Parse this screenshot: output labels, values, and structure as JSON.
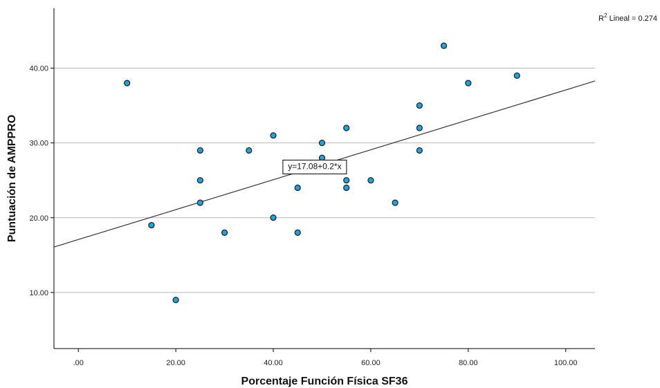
{
  "chart_data": {
    "type": "scatter",
    "title": "",
    "xlabel": "Porcentaje Función Física SF36",
    "ylabel": "Puntuación de AMPPRO",
    "xlim": [
      -5,
      106
    ],
    "ylim": [
      2.5,
      48
    ],
    "x_ticks": [
      0,
      20,
      40,
      60,
      80,
      100
    ],
    "x_tick_labels": [
      ".00",
      "20.00",
      "40.00",
      "60.00",
      "80.00",
      "100.00"
    ],
    "y_ticks": [
      10,
      20,
      30,
      40
    ],
    "y_tick_labels": [
      "10.00",
      "20.00",
      "30.00",
      "40.00"
    ],
    "grid": "horizontal",
    "marker_color": "#1fa3e0",
    "marker_edge_color": "#1a1a1a",
    "points": [
      {
        "x": 10,
        "y": 38
      },
      {
        "x": 15,
        "y": 19
      },
      {
        "x": 20,
        "y": 9
      },
      {
        "x": 25,
        "y": 29
      },
      {
        "x": 25,
        "y": 25
      },
      {
        "x": 25,
        "y": 22
      },
      {
        "x": 30,
        "y": 18
      },
      {
        "x": 35,
        "y": 29
      },
      {
        "x": 40,
        "y": 31
      },
      {
        "x": 40,
        "y": 20
      },
      {
        "x": 45,
        "y": 24
      },
      {
        "x": 45,
        "y": 18
      },
      {
        "x": 50,
        "y": 30
      },
      {
        "x": 50,
        "y": 28
      },
      {
        "x": 55,
        "y": 32
      },
      {
        "x": 55,
        "y": 25
      },
      {
        "x": 55,
        "y": 24
      },
      {
        "x": 60,
        "y": 25
      },
      {
        "x": 65,
        "y": 22
      },
      {
        "x": 70,
        "y": 35
      },
      {
        "x": 70,
        "y": 32
      },
      {
        "x": 70,
        "y": 29
      },
      {
        "x": 75,
        "y": 43
      },
      {
        "x": 80,
        "y": 38
      },
      {
        "x": 90,
        "y": 39
      }
    ],
    "fit_line": {
      "intercept": 17.08,
      "slope": 0.2,
      "equation_label": "y=17.08+0.2*x"
    },
    "r2_label": {
      "prefix": "R",
      "superscript": "2",
      "suffix": " Lineal = 0.274"
    }
  }
}
